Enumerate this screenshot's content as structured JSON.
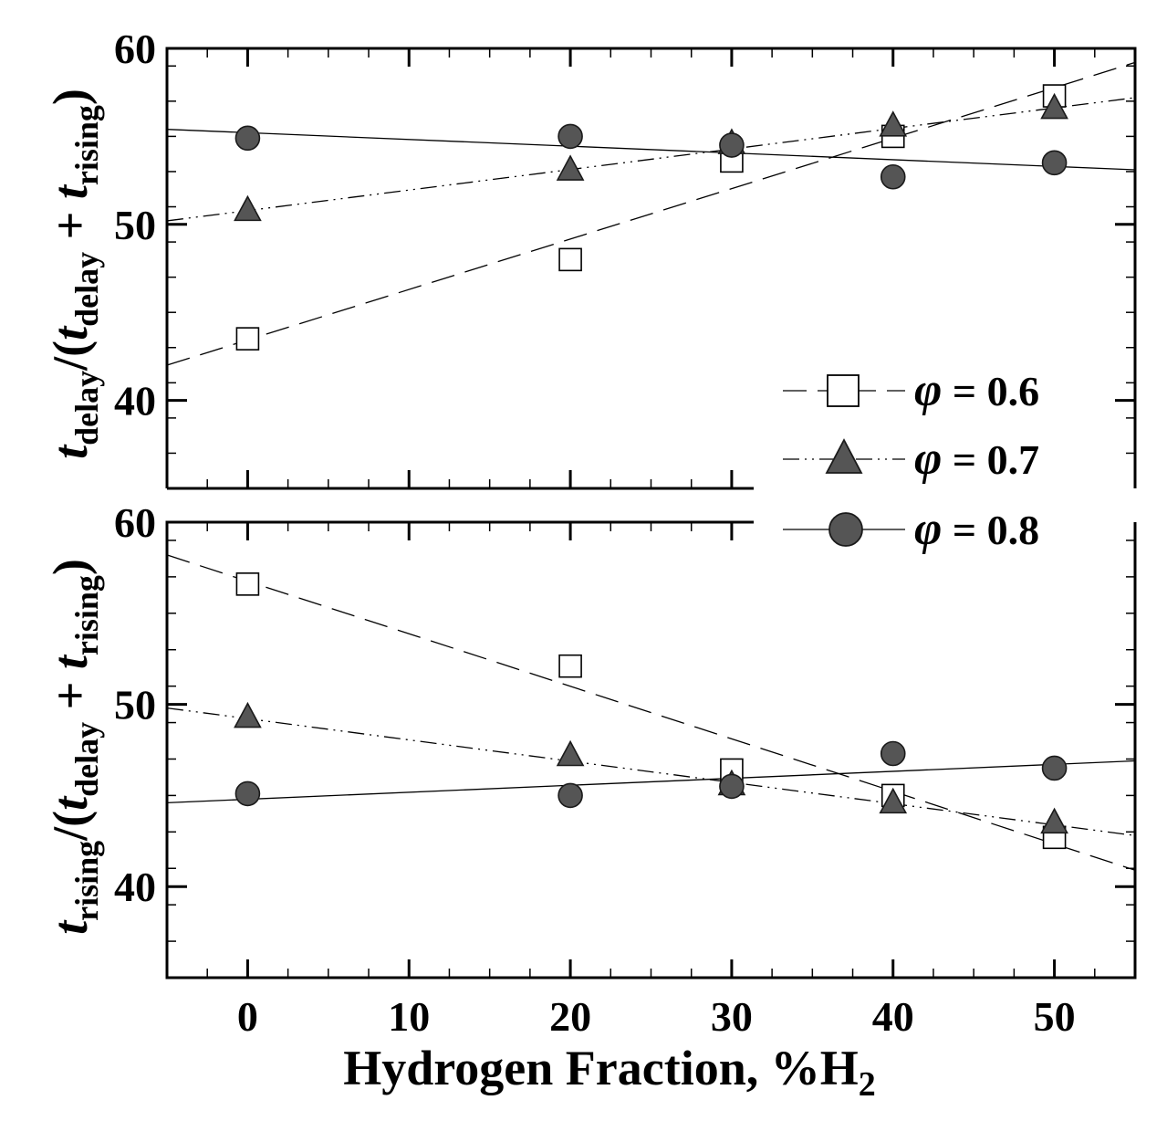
{
  "chart_data": [
    {
      "type": "scatter",
      "panel": "top",
      "ylabel": {
        "num_t": "t",
        "num_sub": "delay",
        "mid": "/(",
        "den_t1": "t",
        "den_sub1": "delay",
        "plus": " + ",
        "den_t2": "t",
        "den_sub2": "rising",
        "close": ")"
      },
      "xlim": [
        -5,
        55
      ],
      "ylim": [
        35,
        60
      ],
      "yticks": [
        40,
        50,
        60
      ],
      "x": [
        0,
        20,
        30,
        40,
        50
      ],
      "series": [
        {
          "name": "φ = 0.6",
          "marker": "open-square",
          "line": "dashed",
          "values": [
            43.5,
            48.0,
            53.6,
            55.0,
            57.3
          ],
          "fit": [
            [
              -5,
              42.0
            ],
            [
              55,
              59.2
            ]
          ]
        },
        {
          "name": "φ = 0.7",
          "marker": "filled-triangle",
          "line": "dash-dot-dot",
          "values": [
            50.8,
            53.1,
            54.6,
            55.6,
            56.6
          ],
          "fit": [
            [
              -5,
              50.2
            ],
            [
              55,
              57.2
            ]
          ]
        },
        {
          "name": "φ = 0.8",
          "marker": "filled-circle",
          "line": "solid",
          "values": [
            54.9,
            55.0,
            54.5,
            52.7,
            53.5
          ],
          "fit": [
            [
              -5,
              55.4
            ],
            [
              55,
              53.1
            ]
          ]
        }
      ]
    },
    {
      "type": "scatter",
      "panel": "bottom",
      "xlabel": {
        "main": "Hydrogen  Fraction, %H",
        "sub": "2"
      },
      "ylabel": {
        "num_t": "t",
        "num_sub": "rising",
        "mid": "/(",
        "den_t1": "t",
        "den_sub1": "delay",
        "plus": " + ",
        "den_t2": "t",
        "den_sub2": "rising",
        "close": ")"
      },
      "xlim": [
        -5,
        55
      ],
      "ylim": [
        35,
        60
      ],
      "xticks": [
        0,
        10,
        20,
        30,
        40,
        50
      ],
      "yticks": [
        40,
        50,
        60
      ],
      "x": [
        0,
        20,
        30,
        40,
        50
      ],
      "series": [
        {
          "name": "φ = 0.6",
          "marker": "open-square",
          "line": "dashed",
          "values": [
            56.6,
            52.1,
            46.4,
            45.0,
            42.7
          ],
          "fit": [
            [
              -5,
              58.2
            ],
            [
              55,
              40.9
            ]
          ]
        },
        {
          "name": "φ = 0.7",
          "marker": "filled-triangle",
          "line": "dash-dot-dot",
          "values": [
            49.3,
            47.2,
            45.6,
            44.6,
            43.5
          ],
          "fit": [
            [
              -5,
              49.8
            ],
            [
              55,
              42.8
            ]
          ]
        },
        {
          "name": "φ = 0.8",
          "marker": "filled-circle",
          "line": "solid",
          "values": [
            45.1,
            45.0,
            45.5,
            47.3,
            46.5
          ],
          "fit": [
            [
              -5,
              44.6
            ],
            [
              55,
              46.9
            ]
          ]
        }
      ]
    }
  ],
  "legend": {
    "placement": "right, spanning both panels",
    "items": [
      {
        "symbol": "φ",
        "label": " = 0.6",
        "marker": "open-square",
        "line": "dashed"
      },
      {
        "symbol": "φ",
        "label": " = 0.7",
        "marker": "filled-triangle",
        "line": "dash-dot-dot"
      },
      {
        "symbol": "φ",
        "label": " = 0.8",
        "marker": "filled-circle",
        "line": "solid"
      }
    ]
  },
  "colors": {
    "marker_fill": "#555555",
    "marker_edge": "#1a1a1a",
    "axis": "#000000",
    "background": "#ffffff"
  }
}
